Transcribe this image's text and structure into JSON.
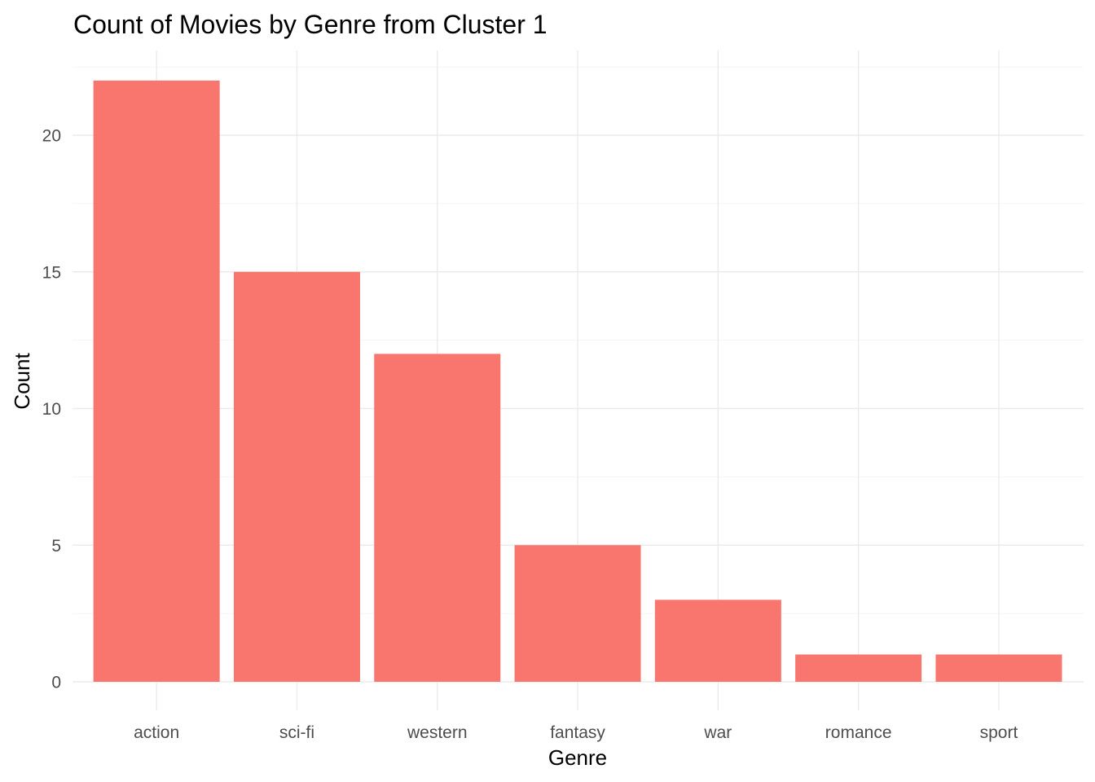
{
  "chart_data": {
    "type": "bar",
    "title": "Count of Movies by Genre from Cluster 1",
    "xlabel": "Genre",
    "ylabel": "Count",
    "categories": [
      "action",
      "sci-fi",
      "western",
      "fantasy",
      "war",
      "romance",
      "sport"
    ],
    "values": [
      22,
      15,
      12,
      5,
      3,
      1,
      1
    ],
    "ylim": [
      0,
      22
    ],
    "yticks": [
      0,
      5,
      10,
      15,
      20
    ],
    "grid": true,
    "legend": "none",
    "bar_color": "#F8766D"
  }
}
